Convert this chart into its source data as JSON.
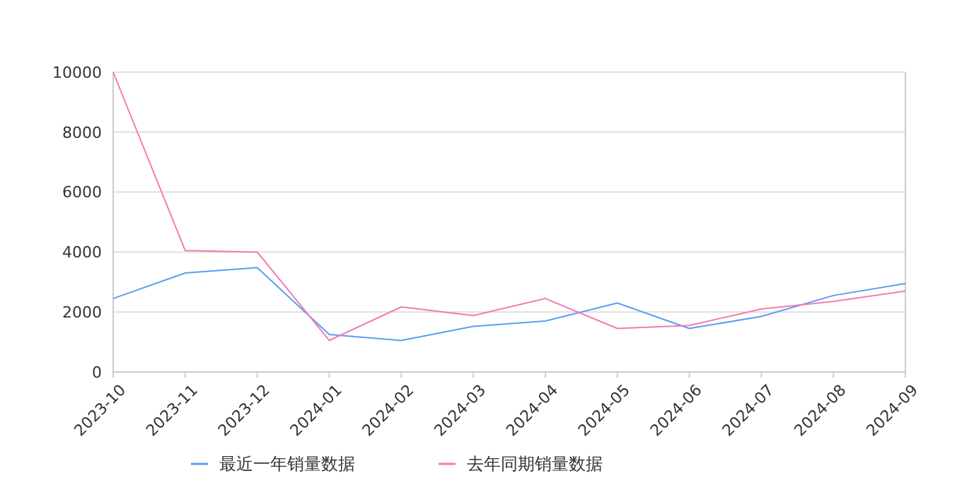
{
  "chart_data": {
    "type": "line",
    "categories": [
      "2023-10",
      "2023-11",
      "2023-12",
      "2024-01",
      "2024-02",
      "2024-03",
      "2024-04",
      "2024-05",
      "2024-06",
      "2024-07",
      "2024-08",
      "2024-09"
    ],
    "series": [
      {
        "name": "最近一年销量数据",
        "color": "#5b9ef0",
        "values": [
          2450,
          3300,
          3480,
          1250,
          1050,
          1520,
          1700,
          2300,
          1450,
          1850,
          2550,
          2950
        ]
      },
      {
        "name": "去年同期销量数据",
        "color": "#f27ab6",
        "values": [
          10000,
          4050,
          4000,
          1050,
          2170,
          1880,
          2450,
          1450,
          1550,
          2100,
          2350,
          2700
        ]
      }
    ],
    "ylim": [
      0,
      10000
    ],
    "yticks": [
      0,
      2000,
      4000,
      6000,
      8000,
      10000
    ],
    "grid": "y",
    "legend": "bottom",
    "marker": "none",
    "line_style": "solid"
  }
}
